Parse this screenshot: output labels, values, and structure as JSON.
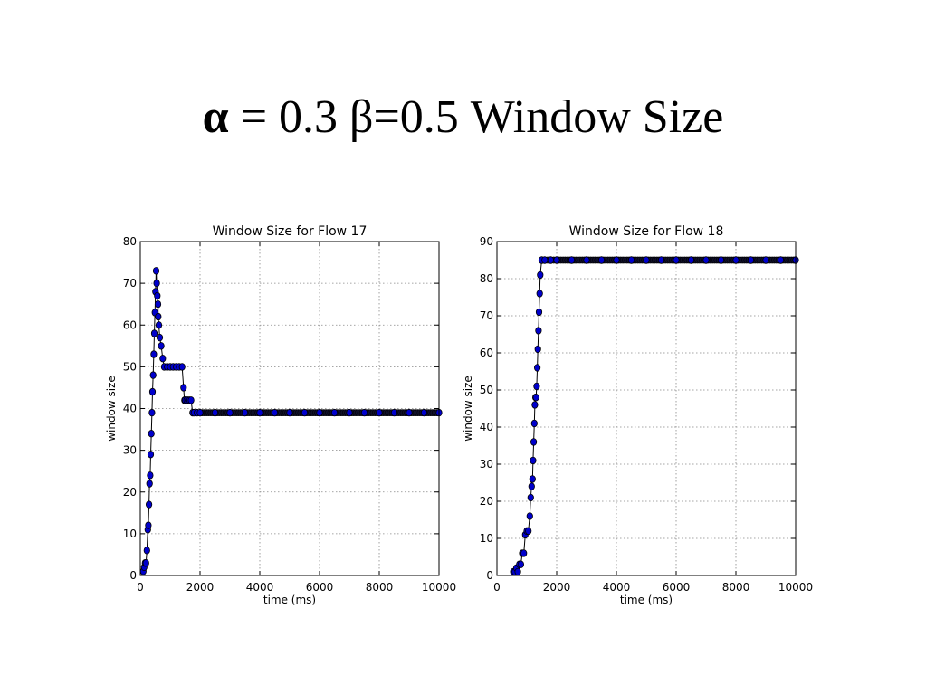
{
  "slide": {
    "title_alpha_symbol": "α",
    "title_rest": " = 0.3 β=0.5 Window Size"
  },
  "colors": {
    "marker_fill": "#0000cc",
    "marker_edge": "#000000",
    "line": "#000000",
    "grid": "#888888"
  },
  "chart_data": [
    {
      "type": "line",
      "title": "Window Size for Flow 17",
      "xlabel": "time (ms)",
      "ylabel": "window size",
      "xlim": [
        0,
        10000
      ],
      "ylim": [
        0,
        80
      ],
      "xticks": [
        0,
        2000,
        4000,
        6000,
        8000,
        10000
      ],
      "yticks": [
        0,
        10,
        20,
        30,
        40,
        50,
        60,
        70,
        80
      ],
      "grid": true,
      "series": [
        {
          "x": [
            100,
            130,
            160,
            190,
            220,
            250,
            270,
            290,
            310,
            330,
            350,
            370,
            390,
            410,
            430,
            450,
            470,
            490,
            510,
            530,
            550,
            570,
            590,
            600,
            620,
            650,
            700,
            750,
            800,
            900,
            1000,
            1100,
            1200,
            1300,
            1400,
            1450,
            1480,
            1500,
            1550,
            1600,
            1650,
            1700,
            1750,
            1800,
            1900,
            2000,
            2500,
            3000,
            3500,
            4000,
            4500,
            5000,
            5500,
            6000,
            6500,
            7000,
            7500,
            8000,
            8500,
            9000,
            9500,
            10000
          ],
          "y": [
            1,
            2,
            3,
            3,
            6,
            11,
            12,
            17,
            22,
            24,
            29,
            34,
            39,
            44,
            48,
            53,
            58,
            63,
            68,
            73,
            70,
            67,
            65,
            62,
            60,
            57,
            55,
            52,
            50,
            50,
            50,
            50,
            50,
            50,
            50,
            45,
            42,
            42,
            42,
            42,
            42,
            42,
            39,
            39,
            39,
            39,
            39,
            39,
            39,
            39,
            39,
            39,
            39,
            39,
            39,
            39,
            39,
            39,
            39,
            39,
            39,
            39
          ]
        }
      ]
    },
    {
      "type": "line",
      "title": "Window Size for Flow 18",
      "xlabel": "time (ms)",
      "ylabel": "window size",
      "xlim": [
        0,
        10000
      ],
      "ylim": [
        0,
        90
      ],
      "xticks": [
        0,
        2000,
        4000,
        6000,
        8000,
        10000
      ],
      "yticks": [
        0,
        10,
        20,
        30,
        40,
        50,
        60,
        70,
        80,
        90
      ],
      "grid": true,
      "series": [
        {
          "x": [
            550,
            600,
            650,
            700,
            750,
            800,
            850,
            900,
            950,
            1000,
            1050,
            1100,
            1130,
            1160,
            1190,
            1210,
            1230,
            1250,
            1270,
            1290,
            1310,
            1330,
            1350,
            1370,
            1390,
            1410,
            1430,
            1450,
            1500,
            1600,
            1800,
            2000,
            2500,
            3000,
            3500,
            4000,
            4500,
            5000,
            5500,
            6000,
            6500,
            7000,
            7500,
            8000,
            8500,
            9000,
            9500,
            10000
          ],
          "y": [
            1,
            1,
            2,
            1,
            3,
            3,
            6,
            6,
            11,
            12,
            12,
            16,
            21,
            24,
            26,
            31,
            36,
            41,
            46,
            48,
            48,
            51,
            56,
            61,
            66,
            71,
            76,
            81,
            85,
            85,
            85,
            85,
            85,
            85,
            85,
            85,
            85,
            85,
            85,
            85,
            85,
            85,
            85,
            85,
            85,
            85,
            85,
            85
          ]
        }
      ]
    }
  ]
}
